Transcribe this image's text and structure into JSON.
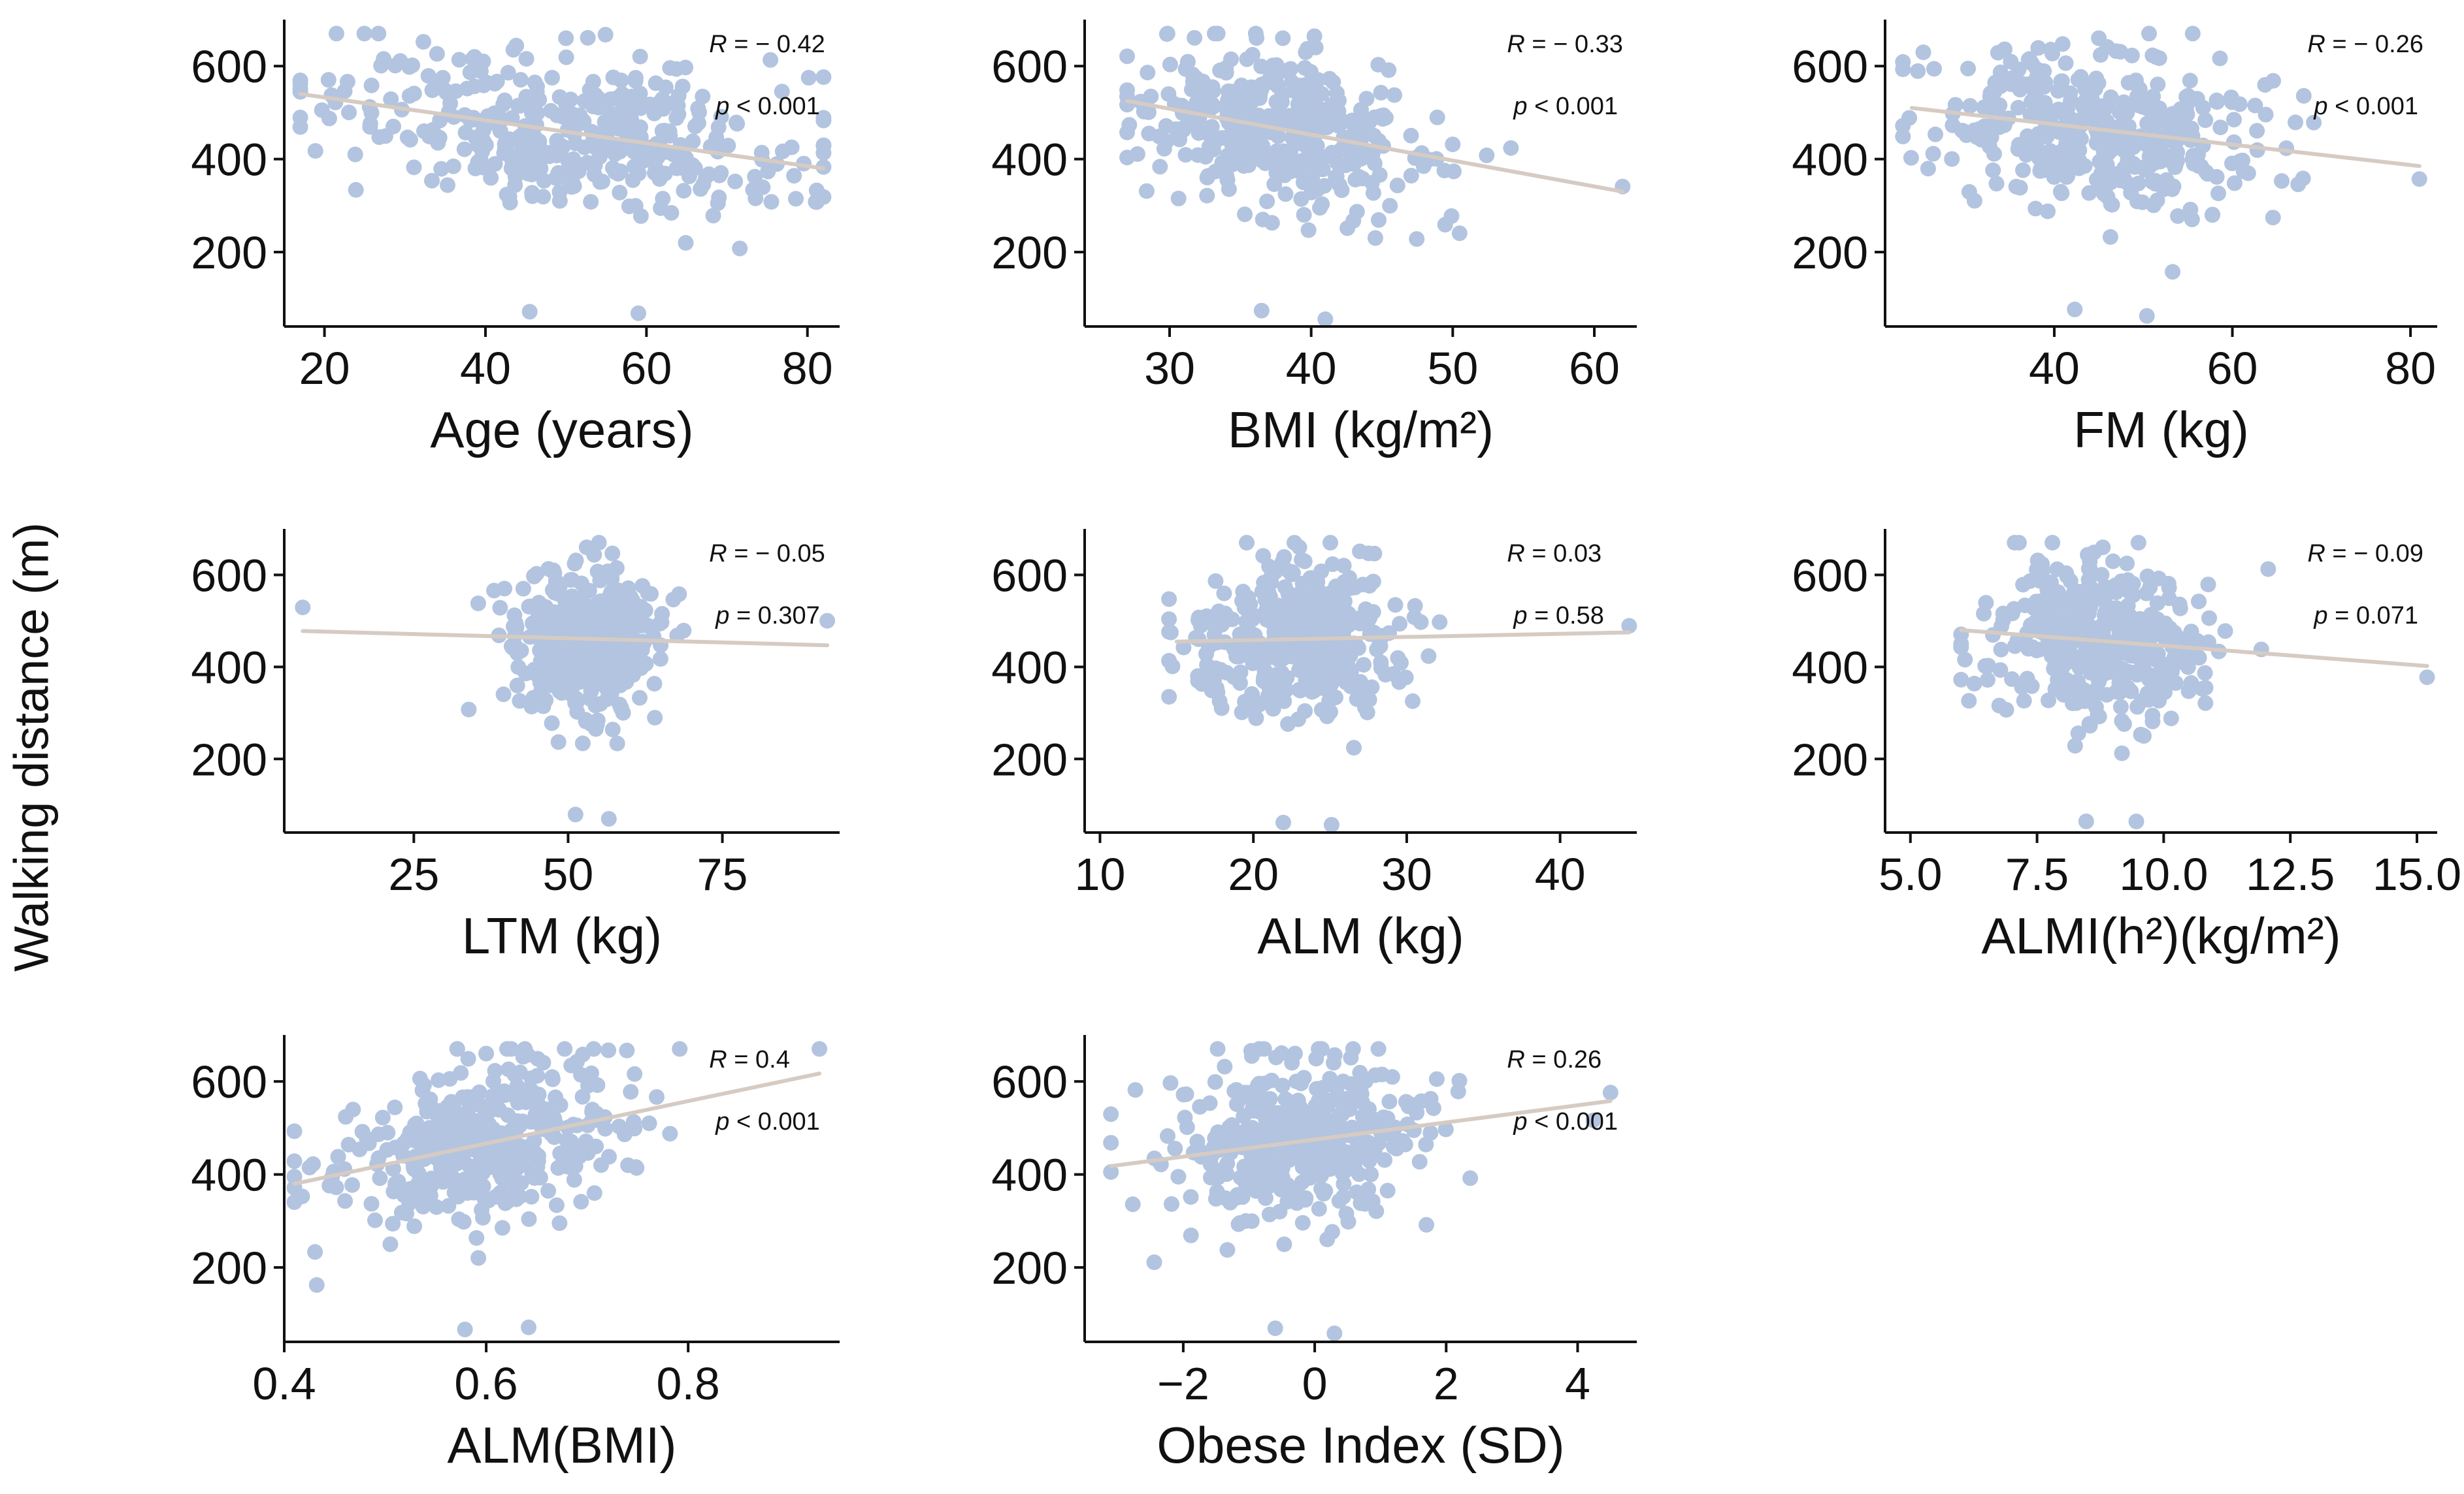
{
  "figure": {
    "y_axis_label": "Walking distance (m)",
    "colors": {
      "points": "#b2c4df",
      "fit_line": "#d6cbc3",
      "axis": "#111111"
    }
  },
  "chart_data": [
    {
      "type": "scatter",
      "panel": 1,
      "xlabel": "Age (years)",
      "ylabel": "Walking distance (m)",
      "xlim": [
        15,
        84
      ],
      "xticks": [
        20,
        40,
        60,
        80
      ],
      "ylim": [
        40,
        700
      ],
      "yticks": [
        200,
        400,
        600
      ],
      "r_label": "R = − 0.42",
      "p_label": "p < 0.001",
      "fit": {
        "x": [
          17,
          82
        ],
        "y": [
          540,
          380
        ]
      },
      "n_points": 380,
      "x_range": [
        17,
        82
      ],
      "x_center": 50,
      "x_spread": 15,
      "y_center": 480,
      "y_spread": 90
    },
    {
      "type": "scatter",
      "panel": 2,
      "xlabel": "BMI (kg/m²)",
      "ylabel": "Walking distance (m)",
      "xlim": [
        24,
        63
      ],
      "xticks": [
        30,
        40,
        50,
        60
      ],
      "ylim": [
        40,
        700
      ],
      "yticks": [
        200,
        400,
        600
      ],
      "r_label": "R = − 0.33",
      "p_label": "p < 0.001",
      "fit": {
        "x": [
          27,
          62
        ],
        "y": [
          525,
          330
        ]
      },
      "n_points": 380,
      "x_range": [
        27,
        62
      ],
      "x_center": 38,
      "x_spread": 5,
      "y_center": 470,
      "y_spread": 95
    },
    {
      "type": "scatter",
      "panel": 3,
      "xlabel": "FM (kg)",
      "ylabel": "Walking distance (m)",
      "xlim": [
        21,
        83
      ],
      "xticks": [
        40,
        60,
        80
      ],
      "ylim": [
        40,
        700
      ],
      "yticks": [
        200,
        400,
        600
      ],
      "r_label": "R = − 0.26",
      "p_label": "p < 0.001",
      "fit": {
        "x": [
          24,
          81
        ],
        "y": [
          510,
          385
        ]
      },
      "n_points": 380,
      "x_range": [
        23,
        81
      ],
      "x_center": 45,
      "x_spread": 9,
      "y_center": 475,
      "y_spread": 95
    },
    {
      "type": "scatter",
      "panel": 4,
      "xlabel": "LTM (kg)",
      "ylabel": "Walking distance (m)",
      "xlim": [
        4,
        94
      ],
      "xticks": [
        25,
        50,
        75
      ],
      "ylim": [
        40,
        700
      ],
      "yticks": [
        200,
        400,
        600
      ],
      "r_label": "R = − 0.05",
      "p_label": "p = 0.307",
      "fit": {
        "x": [
          7,
          92
        ],
        "y": [
          478,
          447
        ]
      },
      "n_points": 380,
      "x_range": [
        7,
        92
      ],
      "x_center": 53,
      "x_spread": 6,
      "y_center": 465,
      "y_spread": 95
    },
    {
      "type": "scatter",
      "panel": 5,
      "xlabel": "ALM (kg)",
      "ylabel": "Walking distance (m)",
      "xlim": [
        9,
        45
      ],
      "xticks": [
        10,
        20,
        30,
        40
      ],
      "ylim": [
        40,
        700
      ],
      "yticks": [
        200,
        400,
        600
      ],
      "r_label": "R = 0.03",
      "p_label": "p = 0.58",
      "fit": {
        "x": [
          15,
          44.5
        ],
        "y": [
          455,
          475
        ]
      },
      "n_points": 380,
      "x_range": [
        14.5,
        44.5
      ],
      "x_center": 23,
      "x_spread": 3.5,
      "y_center": 465,
      "y_spread": 95
    },
    {
      "type": "scatter",
      "panel": 6,
      "xlabel": "ALMI(h²)(kg/m²)",
      "ylabel": "Walking distance (m)",
      "xlim": [
        4.5,
        15.4
      ],
      "xticks": [
        5.0,
        7.5,
        10.0,
        12.5,
        15.0
      ],
      "xtick_labels": [
        "5.0",
        "7.5",
        "10.0",
        "12.5",
        "15.0"
      ],
      "ylim": [
        40,
        700
      ],
      "yticks": [
        200,
        400,
        600
      ],
      "r_label": "R = − 0.09",
      "p_label": "p = 0.071",
      "fit": {
        "x": [
          6,
          15.2
        ],
        "y": [
          480,
          402
        ]
      },
      "n_points": 380,
      "x_range": [
        6,
        15.2
      ],
      "x_center": 8.8,
      "x_spread": 1.1,
      "y_center": 465,
      "y_spread": 95
    },
    {
      "type": "scatter",
      "panel": 7,
      "xlabel": "ALM(BMI)",
      "ylabel": "Walking distance (m)",
      "xlim": [
        0.4,
        0.95
      ],
      "xticks": [
        0.4,
        0.6,
        0.8
      ],
      "xtick_labels": [
        "0.4",
        "0.6",
        "0.8"
      ],
      "ylim": [
        40,
        700
      ],
      "yticks": [
        200,
        400,
        600
      ],
      "r_label": "R = 0.4",
      "p_label": "p < 0.001",
      "fit": {
        "x": [
          0.41,
          0.93
        ],
        "y": [
          380,
          617
        ]
      },
      "n_points": 380,
      "x_range": [
        0.41,
        0.93
      ],
      "x_center": 0.6,
      "x_spread": 0.07,
      "y_center": 465,
      "y_spread": 95
    },
    {
      "type": "scatter",
      "panel": 8,
      "xlabel": "Obese Index (SD)",
      "ylabel": "Walking distance (m)",
      "xlim": [
        -3.5,
        4.9
      ],
      "xticks": [
        -2,
        0,
        2,
        4
      ],
      "xtick_labels": [
        "-2",
        "0",
        "2",
        "4"
      ],
      "ylim": [
        40,
        700
      ],
      "yticks": [
        200,
        400,
        600
      ],
      "r_label": "R = 0.26",
      "p_label": "p < 0.001",
      "fit": {
        "x": [
          -3.1,
          4.5
        ],
        "y": [
          418,
          558
        ]
      },
      "n_points": 380,
      "x_range": [
        -3.1,
        4.5
      ],
      "x_center": -0.3,
      "x_spread": 1.0,
      "y_center": 470,
      "y_spread": 95
    }
  ]
}
